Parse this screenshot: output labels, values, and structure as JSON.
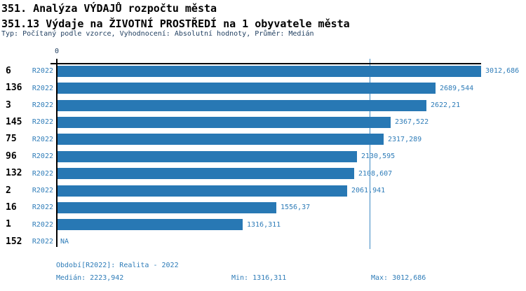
{
  "header": {
    "title": "351. Analýza VÝDAJŮ rozpočtu města",
    "subtitle": "351.13 Výdaje na ŽIVOTNÍ PROSTŘEDÍ na 1 obyvatele města",
    "meta": "Typ: Počítaný podle vzorce, Vyhodnocení: Absolutní hodnoty, Průměr: Medián"
  },
  "chart_data": {
    "type": "bar",
    "orientation": "horizontal",
    "title": "351.13 Výdaje na ŽIVOTNÍ PROSTŘEDÍ na 1 obyvatele města",
    "categories": [
      "6",
      "136",
      "3",
      "145",
      "75",
      "96",
      "132",
      "2",
      "16",
      "1",
      "152"
    ],
    "series": [
      {
        "name": "R2022",
        "values": [
          3012.686,
          2689.544,
          2622.21,
          2367.522,
          2317.289,
          2130.595,
          2108.607,
          2061.941,
          1556.37,
          1316.311,
          null
        ]
      }
    ],
    "value_labels": [
      "3012,686",
      "2689,544",
      "2622,21",
      "2367,522",
      "2317,289",
      "2130,595",
      "2108,607",
      "2061,941",
      "1556,37",
      "1316,311",
      "NA"
    ],
    "period_label": "R2022",
    "na_label": "NA",
    "axis_origin_label": "0",
    "xlim": [
      0,
      3012.686
    ],
    "median": 2223.942,
    "min": 1316.311,
    "max": 3012.686,
    "grid": false,
    "legend": false
  },
  "footer": {
    "period_label": "Období[R2022]: Realita - 2022",
    "median_label": "Medián: 2223,942",
    "min_label": "Min: 1316,311",
    "max_label": "Max: 3012,686"
  },
  "colors": {
    "bar": "#2878b4",
    "text_blue": "#2e7cb8",
    "median_line": "#3d8ac4",
    "axis": "#000000",
    "title_text": "#000000",
    "meta_text": "#1d3c5e",
    "background": "#ffffff"
  }
}
